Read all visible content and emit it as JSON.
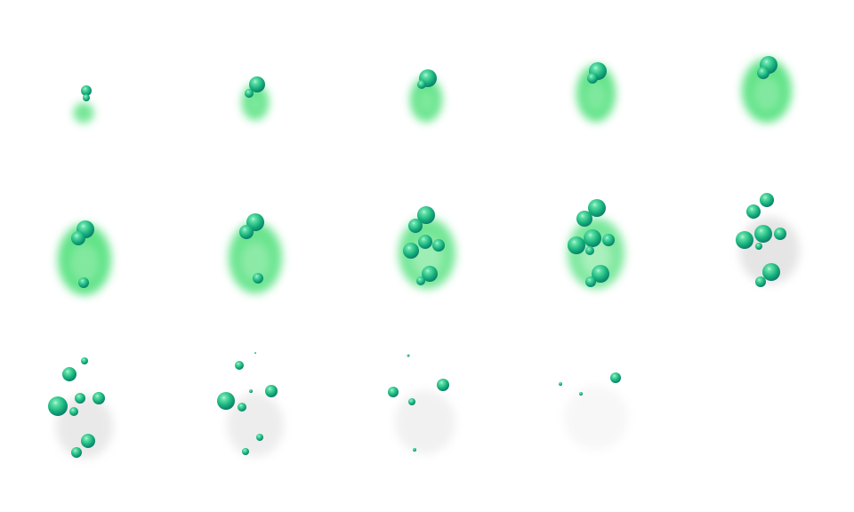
{
  "sprite_sheet": {
    "frame_count": 14,
    "columns": 5,
    "colors": {
      "smoke_green": "#4fe07a",
      "smoke_grey": "#d8d8d8",
      "bubble_light": "#5fe0a8",
      "bubble_mid": "#16b07a",
      "bubble_dark": "#0a6f6a"
    }
  }
}
